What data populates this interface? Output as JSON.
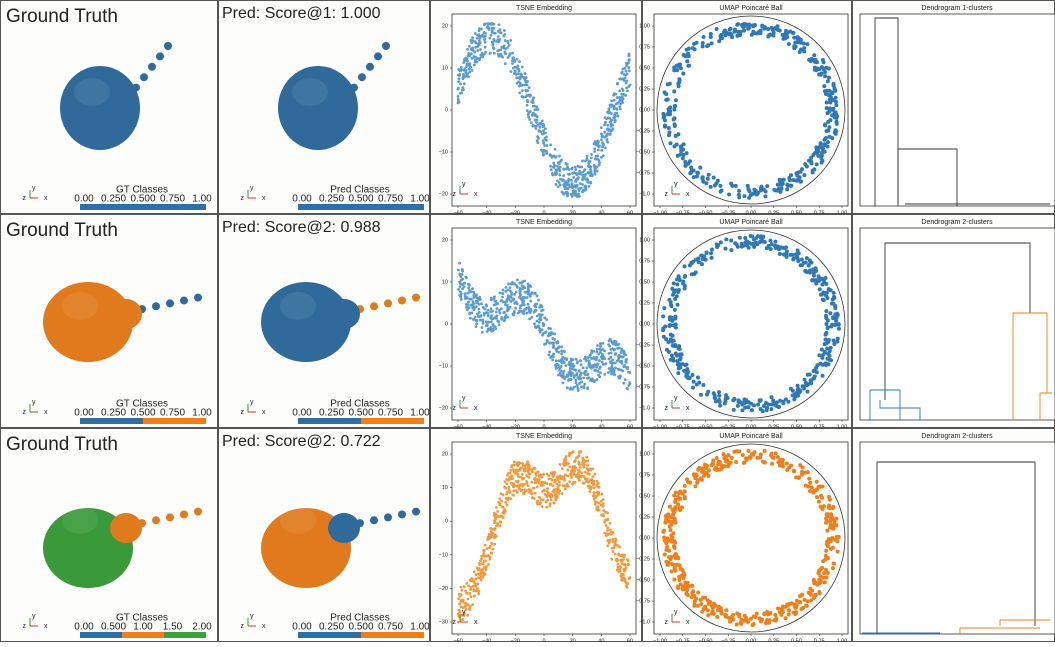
{
  "rows": [
    {
      "gt_title": "Ground Truth",
      "pred_title": "Pred: Score@1: 1.000",
      "gt_colorbar": {
        "label": "GT Classes",
        "ticks": [
          "0.00",
          "0.250",
          "0.500",
          "0.750",
          "1.00"
        ],
        "colors": [
          "#2f6fa6"
        ]
      },
      "pred_colorbar": {
        "label": "Pred Classes",
        "ticks": [
          "0.00",
          "0.250",
          "0.500",
          "0.750",
          "1.00"
        ],
        "colors": [
          "#2f6fa6"
        ]
      },
      "gt_blob": [
        "#2f6a9a"
      ],
      "pred_blob": [
        "#2f6a9a"
      ],
      "tsne": {
        "title": "TSNE Embedding",
        "xticks": [
          "−60",
          "−40",
          "−20",
          "0",
          "20",
          "40",
          "60"
        ],
        "yticks": [
          "20",
          "10",
          "0",
          "−10",
          "−20"
        ],
        "color": "#5b9bd5"
      },
      "umap": {
        "title": "UMAP Poincaré Ball",
        "xticks": [
          "−1.00",
          "−0.75",
          "−0.50",
          "−0.25",
          "0.00",
          "0.25",
          "0.50",
          "0.75",
          "1.00"
        ],
        "yticks": [
          "1.00",
          "0.75",
          "0.50",
          "0.25",
          "0.00",
          "−0.25",
          "−0.50",
          "−0.75",
          "−1.0"
        ],
        "color": "#2f78b7"
      },
      "dendrogram": {
        "title": "Dendrogram 1-clusters"
      }
    },
    {
      "gt_title": "Ground Truth",
      "pred_title": "Pred: Score@2: 0.988",
      "gt_colorbar": {
        "label": "GT Classes",
        "ticks": [
          "0.00",
          "0.250",
          "0.500",
          "0.750",
          "1.00"
        ],
        "colors": [
          "#2f6fa6",
          "#f07f1a"
        ]
      },
      "pred_colorbar": {
        "label": "Pred Classes",
        "ticks": [
          "0.00",
          "0.250",
          "0.500",
          "0.750",
          "1.00"
        ],
        "colors": [
          "#2f6fa6",
          "#f07f1a"
        ]
      },
      "gt_blob": [
        "#e07a1c",
        "#2f6a9a"
      ],
      "pred_blob": [
        "#2f6a9a",
        "#e07a1c"
      ],
      "tsne": {
        "title": "TSNE Embedding",
        "xticks": [
          "−60",
          "−40",
          "−20",
          "0",
          "20",
          "40",
          "60"
        ],
        "yticks": [
          "20",
          "10",
          "0",
          "−10",
          "−20"
        ],
        "color": "#5b9bd5"
      },
      "umap": {
        "title": "UMAP Poincaré Ball",
        "xticks": [
          "−1.00",
          "−0.75",
          "−0.50",
          "−0.25",
          "0.00",
          "0.25",
          "0.50",
          "0.75",
          "1.00"
        ],
        "yticks": [
          "1.00",
          "0.75",
          "0.50",
          "0.25",
          "0.00",
          "−0.25",
          "−0.50",
          "−0.75",
          "−1.0"
        ],
        "color": "#2f78b7"
      },
      "dendrogram": {
        "title": "Dendrogram 2-clusters"
      }
    },
    {
      "gt_title": "Ground Truth",
      "pred_title": "Pred: Score@2: 0.722",
      "gt_colorbar": {
        "label": "GT Classes",
        "ticks": [
          "0.00",
          "0.500",
          "1.00",
          "1.50",
          "2.00"
        ],
        "colors": [
          "#2f6fa6",
          "#f07f1a",
          "#3ca03c"
        ]
      },
      "pred_colorbar": {
        "label": "Pred Classes",
        "ticks": [
          "0.00",
          "0.250",
          "0.500",
          "0.750",
          "1.00"
        ],
        "colors": [
          "#2f6fa6",
          "#f07f1a"
        ]
      },
      "gt_blob": [
        "#3a9a3a",
        "#e07a1c"
      ],
      "pred_blob": [
        "#e07a1c",
        "#2f6a9a"
      ],
      "tsne": {
        "title": "TSNE Embedding",
        "xticks": [
          "−60",
          "−40",
          "−20",
          "0",
          "20",
          "40",
          "60"
        ],
        "yticks": [
          "20",
          "10",
          "0",
          "−10",
          "−20",
          "−30"
        ],
        "color": "#f5983a"
      },
      "umap": {
        "title": "UMAP Poincaré Ball",
        "xticks": [
          "−1.00",
          "−0.75",
          "−0.50",
          "−0.25",
          "0.00",
          "0.25",
          "0.50",
          "0.75",
          "1.00"
        ],
        "yticks": [
          "1.00",
          "0.75",
          "0.50",
          "0.25",
          "0.00",
          "−0.25",
          "−0.50",
          "−0.75",
          "−1.0"
        ],
        "color": "#f07f1a"
      },
      "dendrogram": {
        "title": "Dendrogram 2-clusters"
      }
    }
  ],
  "triad_labels": [
    "x",
    "y",
    "z"
  ]
}
